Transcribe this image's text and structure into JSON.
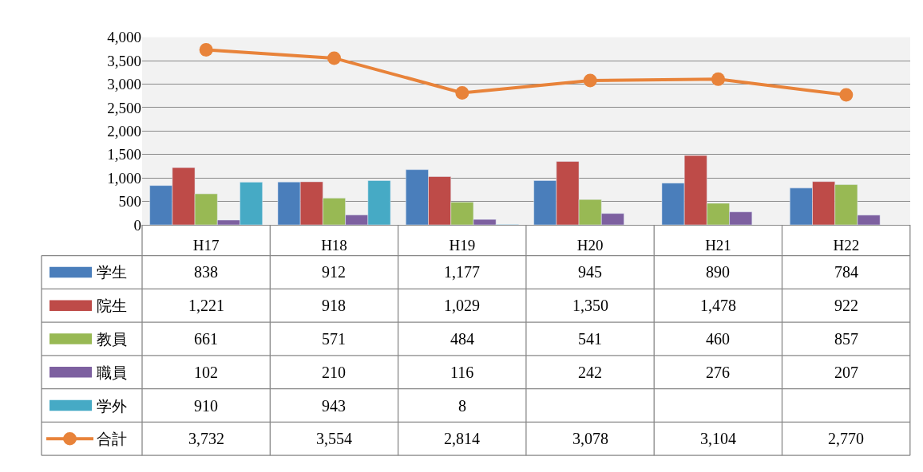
{
  "chart_data": {
    "type": "bar",
    "categories": [
      "H17",
      "H18",
      "H19",
      "H20",
      "H21",
      "H22"
    ],
    "series": [
      {
        "name": "学生",
        "color": "#4a7ebb",
        "values": [
          838,
          912,
          1177,
          945,
          890,
          784
        ],
        "value_labels": [
          "838",
          "912",
          "1,177",
          "945",
          "890",
          "784"
        ]
      },
      {
        "name": "院生",
        "color": "#be4b48",
        "values": [
          1221,
          918,
          1029,
          1350,
          1478,
          922
        ],
        "value_labels": [
          "1,221",
          "918",
          "1,029",
          "1,350",
          "1,478",
          "922"
        ]
      },
      {
        "name": "教員",
        "color": "#98b954",
        "values": [
          661,
          571,
          484,
          541,
          460,
          857
        ],
        "value_labels": [
          "661",
          "571",
          "484",
          "541",
          "460",
          "857"
        ]
      },
      {
        "name": "職員",
        "color": "#7d60a0",
        "values": [
          102,
          210,
          116,
          242,
          276,
          207
        ],
        "value_labels": [
          "102",
          "210",
          "116",
          "242",
          "276",
          "207"
        ]
      },
      {
        "name": "学外",
        "color": "#46aac5",
        "values": [
          910,
          943,
          8,
          null,
          null,
          null
        ],
        "value_labels": [
          "910",
          "943",
          "8",
          null,
          null,
          null
        ]
      },
      {
        "name": "合計",
        "color": "#e8833a",
        "type": "line",
        "marker": "circle",
        "values": [
          3732,
          3554,
          2814,
          3078,
          3104,
          2770
        ],
        "value_labels": [
          "3,732",
          "3,554",
          "2,814",
          "3,078",
          "3,104",
          "2,770"
        ]
      }
    ],
    "ylim": [
      0,
      4000
    ],
    "yticks": [
      {
        "value": 0,
        "label": "0"
      },
      {
        "value": 500,
        "label": "500"
      },
      {
        "value": 1000,
        "label": "1,000"
      },
      {
        "value": 1500,
        "label": "1,500"
      },
      {
        "value": 2000,
        "label": "2,000"
      },
      {
        "value": 2500,
        "label": "2,500"
      },
      {
        "value": 3000,
        "label": "3,000"
      },
      {
        "value": 3500,
        "label": "3,500"
      },
      {
        "value": 4000,
        "label": "4,000"
      }
    ],
    "grid": "y",
    "legend": "bottom left"
  }
}
